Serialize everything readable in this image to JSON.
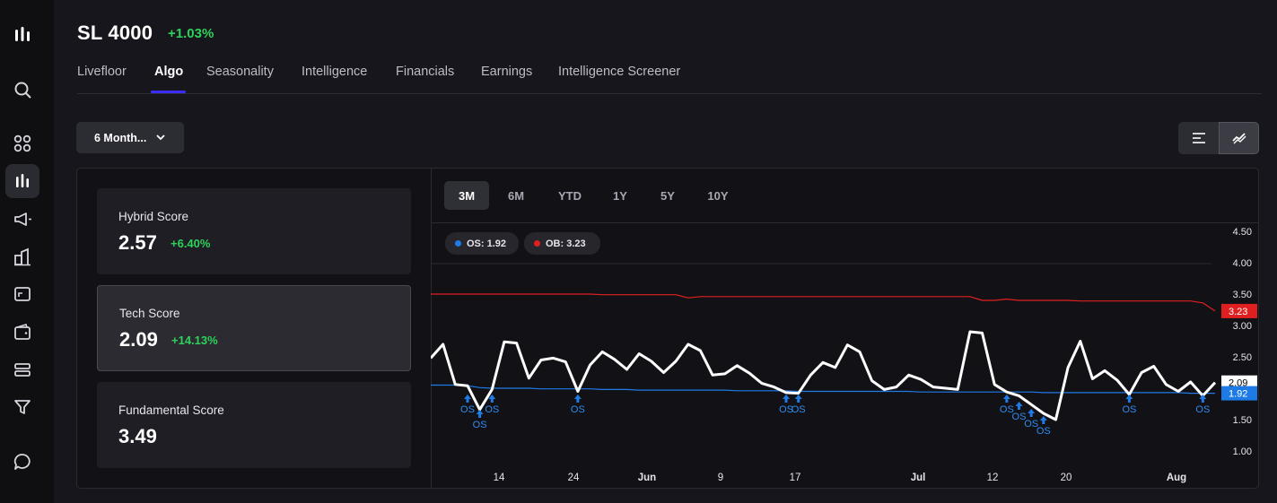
{
  "header": {
    "title": "SL 4000",
    "change": "+1.03%"
  },
  "tabs": [
    "Livefloor",
    "Algo",
    "Seasonality",
    "Intelligence",
    "Financials",
    "Earnings",
    "Intelligence Screener"
  ],
  "active_tab": "Algo",
  "period_dropdown": {
    "label": "6 Month..."
  },
  "scores": [
    {
      "label": "Hybrid Score",
      "value": "2.57",
      "change": "+6.40%"
    },
    {
      "label": "Tech Score",
      "value": "2.09",
      "change": "+14.13%"
    },
    {
      "label": "Fundamental Score",
      "value": "3.49",
      "change": ""
    }
  ],
  "ranges": [
    "3M",
    "6M",
    "YTD",
    "1Y",
    "5Y",
    "10Y"
  ],
  "active_range": "3M",
  "legend": {
    "os": "OS: 1.92",
    "ob": "OB: 3.23"
  },
  "colors": {
    "accent": "#3b2cff",
    "positive": "#2ed15a",
    "os_line": "#1e7be6",
    "ob_line": "#e02020",
    "score_line": "#ffffff"
  },
  "chart_data": {
    "type": "line",
    "x_tick_labels": [
      "14",
      "24",
      "Jun",
      "9",
      "17",
      "Jul",
      "12",
      "20",
      "Aug"
    ],
    "y_tick_labels": [
      "4.50",
      "4.00",
      "3.50",
      "3.00",
      "2.50",
      "2.00",
      "1.50",
      "1.00"
    ],
    "ylim": [
      0.75,
      4.55
    ],
    "series": [
      {
        "values": [
          2.48,
          2.7,
          2.06,
          2.04,
          1.66,
          1.98,
          2.74,
          2.72,
          2.16,
          2.45,
          2.48,
          2.42,
          1.95,
          2.37,
          2.58,
          2.46,
          2.3,
          2.55,
          2.43,
          2.25,
          2.43,
          2.7,
          2.6,
          2.21,
          2.23,
          2.36,
          2.24,
          2.08,
          2.02,
          1.93,
          1.92,
          2.21,
          2.41,
          2.33,
          2.69,
          2.58,
          2.12,
          1.98,
          2.02,
          2.21,
          2.14,
          2.02,
          2.0,
          1.98,
          2.9,
          2.88,
          2.06,
          1.94,
          1.88,
          1.74,
          1.6,
          1.5,
          2.33,
          2.75,
          2.15,
          2.28,
          2.13,
          1.9,
          2.25,
          2.35,
          2.06,
          1.95,
          2.1,
          1.88,
          2.09
        ]
      },
      {
        "name": "OS",
        "values": [
          2.05,
          2.05,
          2.05,
          2.04,
          2.01,
          2.0,
          2.0,
          2.0,
          2.0,
          1.99,
          1.99,
          1.99,
          1.99,
          1.99,
          1.98,
          1.98,
          1.98,
          1.97,
          1.97,
          1.97,
          1.97,
          1.97,
          1.97,
          1.97,
          1.97,
          1.96,
          1.96,
          1.96,
          1.96,
          1.96,
          1.95,
          1.95,
          1.95,
          1.95,
          1.95,
          1.95,
          1.95,
          1.95,
          1.95,
          1.95,
          1.94,
          1.94,
          1.94,
          1.94,
          1.94,
          1.94,
          1.94,
          1.94,
          1.94,
          1.94,
          1.93,
          1.93,
          1.93,
          1.93,
          1.93,
          1.93,
          1.93,
          1.93,
          1.93,
          1.93,
          1.93,
          1.93,
          1.92,
          1.92,
          1.92
        ]
      },
      {
        "name": "OB",
        "values": [
          3.5,
          3.5,
          3.5,
          3.5,
          3.5,
          3.5,
          3.5,
          3.5,
          3.5,
          3.5,
          3.5,
          3.5,
          3.5,
          3.5,
          3.49,
          3.49,
          3.49,
          3.49,
          3.49,
          3.49,
          3.49,
          3.44,
          3.46,
          3.46,
          3.46,
          3.46,
          3.46,
          3.46,
          3.46,
          3.46,
          3.46,
          3.46,
          3.46,
          3.46,
          3.46,
          3.46,
          3.46,
          3.46,
          3.46,
          3.46,
          3.46,
          3.46,
          3.46,
          3.46,
          3.46,
          3.4,
          3.4,
          3.42,
          3.4,
          3.4,
          3.4,
          3.4,
          3.4,
          3.39,
          3.39,
          3.39,
          3.39,
          3.39,
          3.39,
          3.39,
          3.39,
          3.39,
          3.39,
          3.36,
          3.23
        ]
      }
    ],
    "current_tags": [
      "2.09",
      "1.92",
      "3.23"
    ],
    "os_signals": [
      {
        "label": "OS",
        "index": 3
      },
      {
        "label": "OS",
        "index": 4
      },
      {
        "label": "OS",
        "index": 5
      },
      {
        "label": "OS",
        "index": 12
      },
      {
        "label": "OS",
        "index": 29
      },
      {
        "label": "OS",
        "index": 30
      },
      {
        "label": "OS",
        "index": 47
      },
      {
        "label": "OS",
        "index": 48
      },
      {
        "label": "OS",
        "index": 49
      },
      {
        "label": "OS",
        "index": 50
      },
      {
        "label": "OS",
        "index": 57
      },
      {
        "label": "OS",
        "index": 63
      }
    ]
  }
}
